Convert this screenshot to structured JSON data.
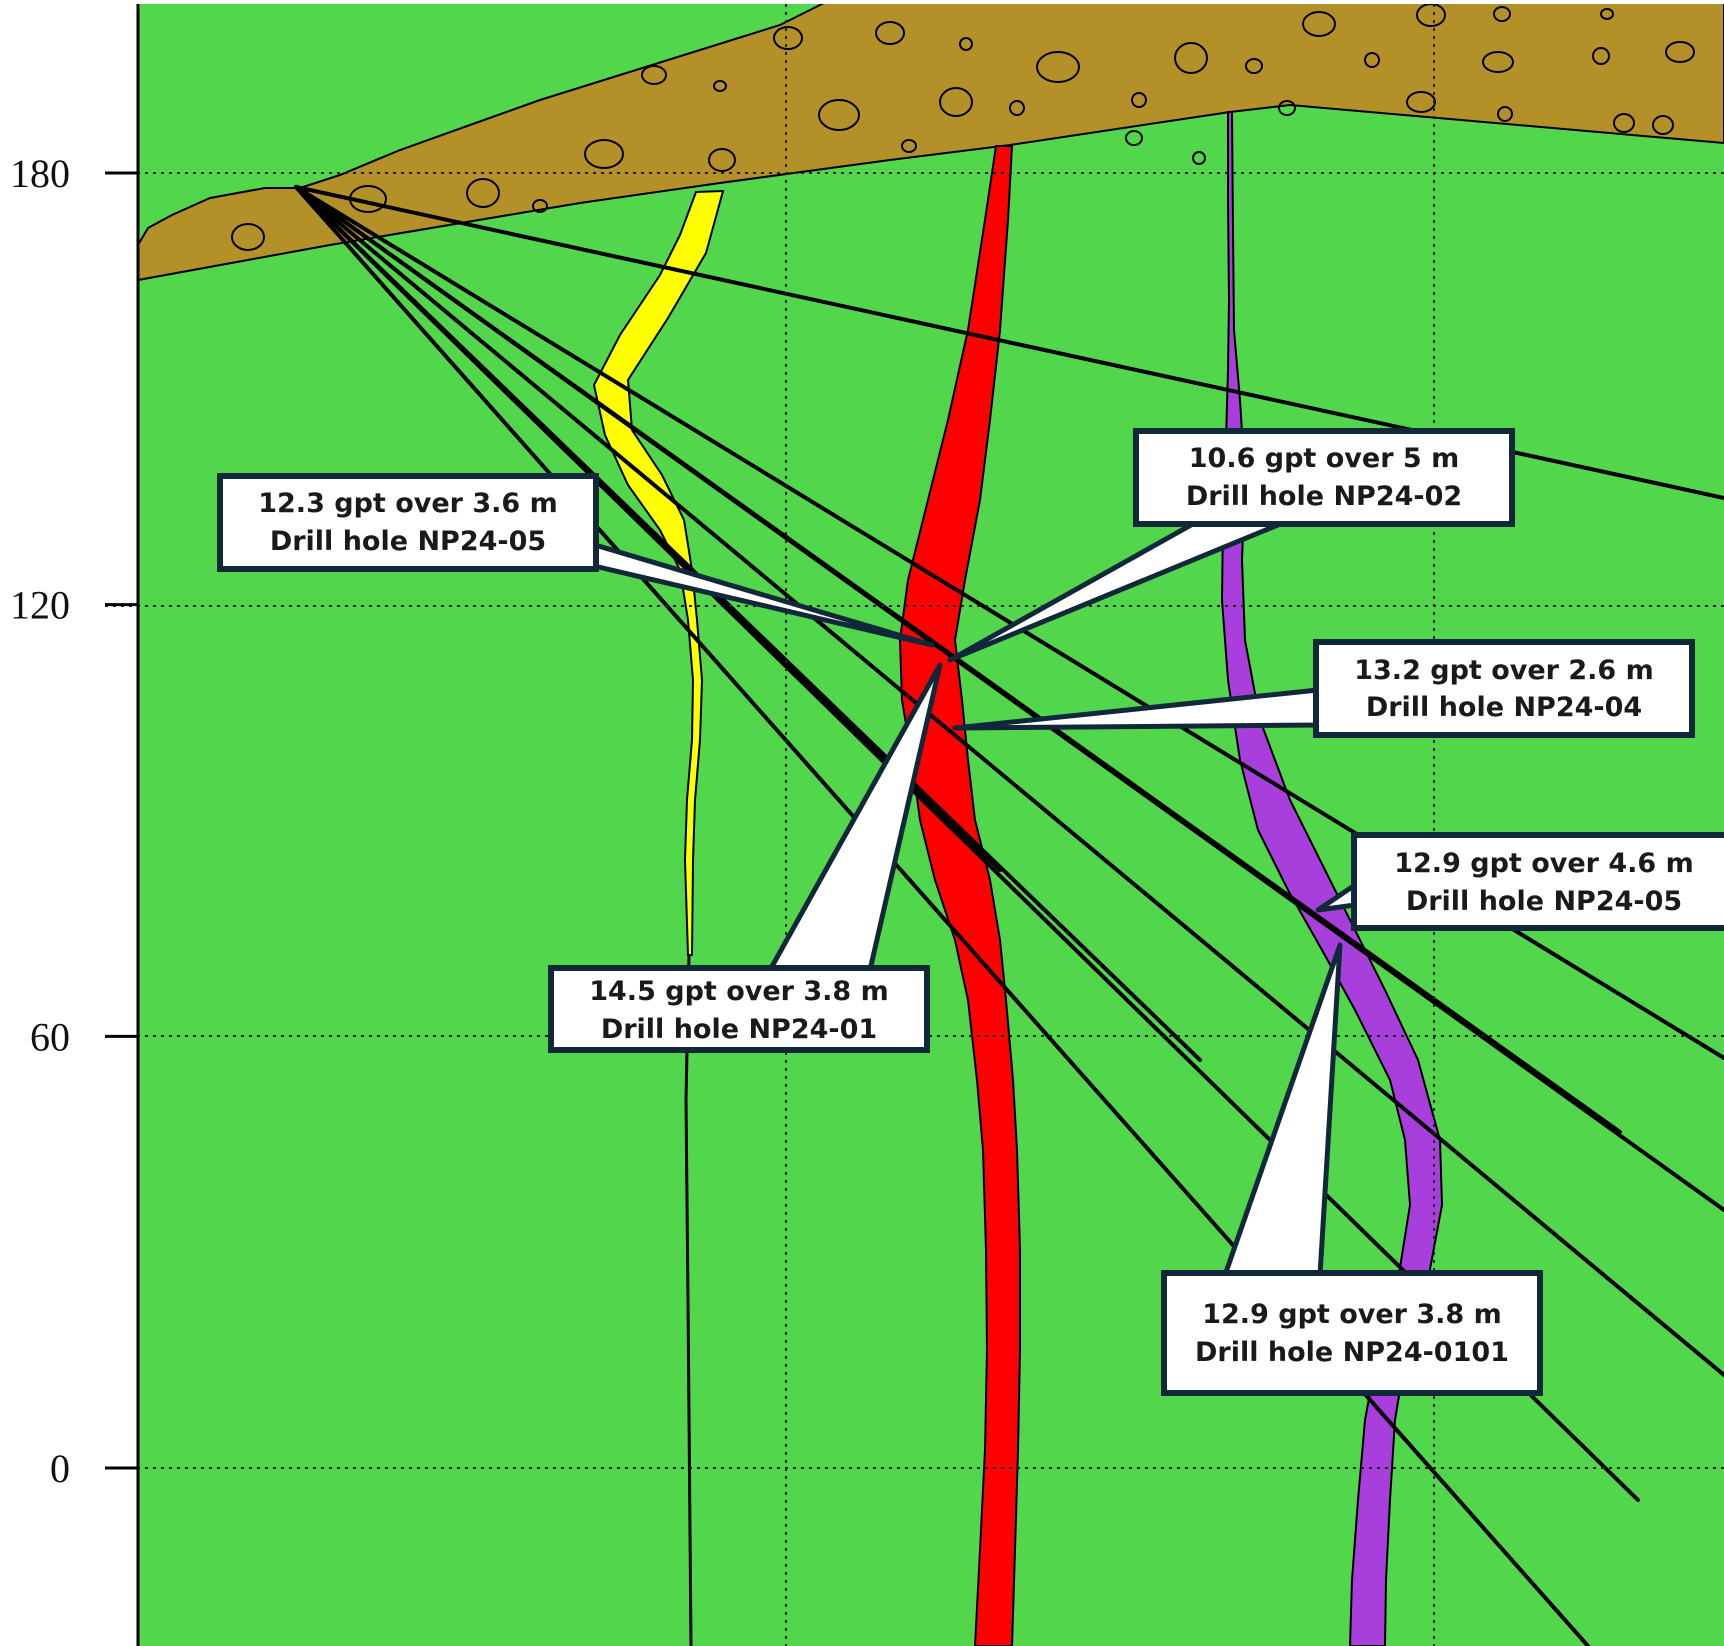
{
  "axis": {
    "ticks": [
      {
        "value": 180,
        "label": "180"
      },
      {
        "value": 120,
        "label": "120"
      },
      {
        "value": 60,
        "label": "60"
      },
      {
        "value": 0,
        "label": "0"
      }
    ]
  },
  "colors": {
    "host_rock": "#52d64c",
    "overburden": "#b39128",
    "vein_yellow": "#ffff00",
    "vein_red": "#ff0000",
    "vein_purple": "#a83fdd",
    "drill_trace": "#000000",
    "callout_border": "#10283a"
  },
  "callouts": [
    {
      "grade": "12.3  gpt over  3.6 m",
      "hole": "Drill hole NP24-05"
    },
    {
      "grade": "10.6  gpt over  5 m",
      "hole": "Drill hole NP24-02"
    },
    {
      "grade": "13.2  gpt over  2.6 m",
      "hole": "Drill hole NP24-04"
    },
    {
      "grade": "12.9  gpt over  4.6 m",
      "hole": "Drill hole NP24-05"
    },
    {
      "grade": "14.5 gpt over  3.8 m",
      "hole": "Drill hole NP24-01"
    },
    {
      "grade": "12.9 gpt over  3.8 m",
      "hole": "Drill hole NP24-0101"
    }
  ]
}
